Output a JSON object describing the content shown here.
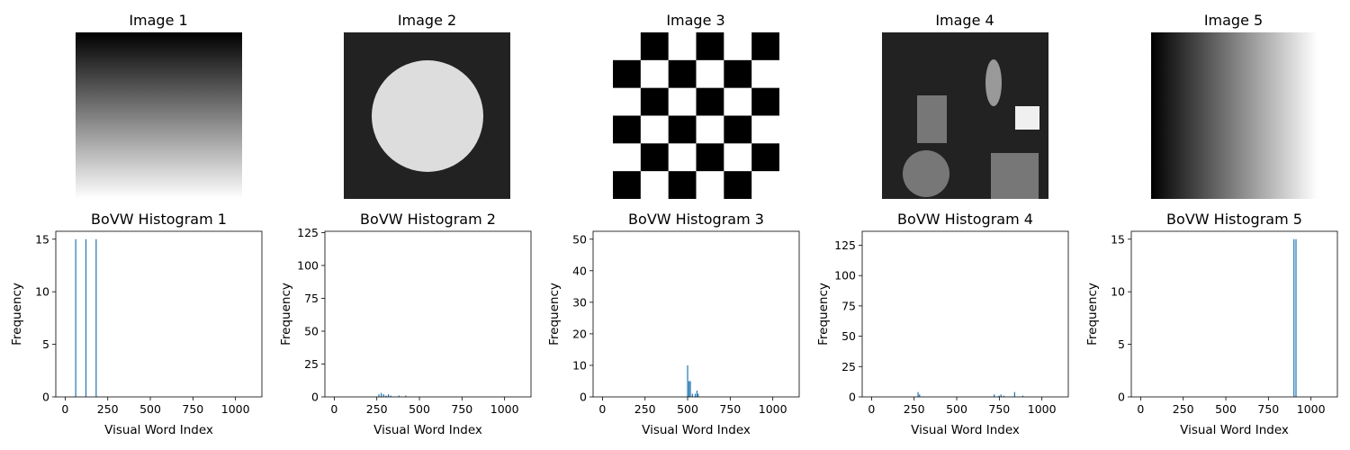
{
  "images": [
    {
      "title": "Image 1",
      "kind": "vertical-gradient"
    },
    {
      "title": "Image 2",
      "kind": "circle"
    },
    {
      "title": "Image 3",
      "kind": "checkerboard"
    },
    {
      "title": "Image 4",
      "kind": "shapes"
    },
    {
      "title": "Image 5",
      "kind": "horizontal-gradient"
    }
  ],
  "colors": {
    "bar": "#1f77b4",
    "axis": "#000000",
    "dark": "#222222",
    "light": "#dddddd"
  },
  "chart_data": [
    {
      "type": "bar",
      "title": "BoVW Histogram 1",
      "xlabel": "Visual Word Index",
      "ylabel": "Frequency",
      "xlim": [
        -55,
        1155
      ],
      "ylim": [
        0,
        15.75
      ],
      "xticks": [
        0,
        250,
        500,
        750,
        1000
      ],
      "yticks": [
        0,
        5,
        10,
        15
      ],
      "bars": [
        {
          "x": 62,
          "y": 15
        },
        {
          "x": 122,
          "y": 15
        },
        {
          "x": 182,
          "y": 15
        }
      ]
    },
    {
      "type": "bar",
      "title": "BoVW Histogram 2",
      "xlabel": "Visual Word Index",
      "ylabel": "Frequency",
      "xlim": [
        -55,
        1155
      ],
      "ylim": [
        0,
        126
      ],
      "xticks": [
        0,
        250,
        500,
        750,
        1000
      ],
      "yticks": [
        0,
        25,
        50,
        75,
        100,
        125
      ],
      "bars": [
        {
          "x": 262,
          "y": 2
        },
        {
          "x": 276,
          "y": 3
        },
        {
          "x": 290,
          "y": 2
        },
        {
          "x": 304,
          "y": 1
        },
        {
          "x": 318,
          "y": 2
        },
        {
          "x": 332,
          "y": 1
        },
        {
          "x": 380,
          "y": 1
        },
        {
          "x": 420,
          "y": 1
        }
      ]
    },
    {
      "type": "bar",
      "title": "BoVW Histogram 3",
      "xlabel": "Visual Word Index",
      "ylabel": "Frequency",
      "xlim": [
        -55,
        1155
      ],
      "ylim": [
        0,
        52.5
      ],
      "xticks": [
        0,
        250,
        500,
        750,
        1000
      ],
      "yticks": [
        0,
        10,
        20,
        30,
        40,
        50
      ],
      "bars": [
        {
          "x": 500,
          "y": 10
        },
        {
          "x": 508,
          "y": 5
        },
        {
          "x": 516,
          "y": 5
        },
        {
          "x": 528,
          "y": 1
        },
        {
          "x": 545,
          "y": 1
        },
        {
          "x": 555,
          "y": 2
        },
        {
          "x": 562,
          "y": 1
        }
      ]
    },
    {
      "type": "bar",
      "title": "BoVW Histogram 4",
      "xlabel": "Visual Word Index",
      "ylabel": "Frequency",
      "xlim": [
        -55,
        1155
      ],
      "ylim": [
        0,
        136.5
      ],
      "xticks": [
        0,
        250,
        500,
        750,
        1000
      ],
      "yticks": [
        0,
        25,
        50,
        75,
        100,
        125
      ],
      "bars": [
        {
          "x": 273,
          "y": 4
        },
        {
          "x": 282,
          "y": 2
        },
        {
          "x": 720,
          "y": 2
        },
        {
          "x": 748,
          "y": 1
        },
        {
          "x": 760,
          "y": 2
        },
        {
          "x": 776,
          "y": 1
        },
        {
          "x": 840,
          "y": 4
        },
        {
          "x": 888,
          "y": 1
        }
      ]
    },
    {
      "type": "bar",
      "title": "BoVW Histogram 5",
      "xlabel": "Visual Word Index",
      "ylabel": "Frequency",
      "xlim": [
        -55,
        1155
      ],
      "ylim": [
        0,
        15.75
      ],
      "xticks": [
        0,
        250,
        500,
        750,
        1000
      ],
      "yticks": [
        0,
        5,
        10,
        15
      ],
      "bars": [
        {
          "x": 900,
          "y": 15
        },
        {
          "x": 912,
          "y": 15
        }
      ]
    }
  ]
}
